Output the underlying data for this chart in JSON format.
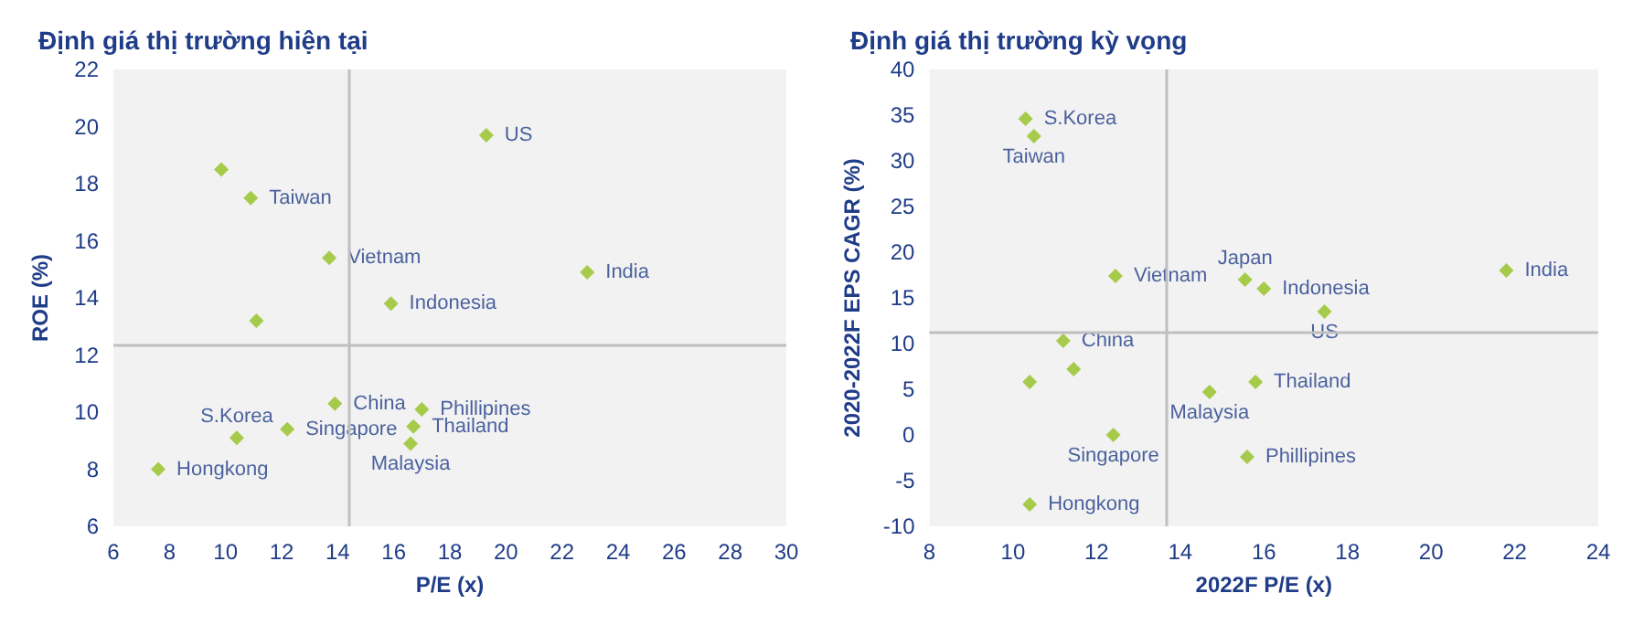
{
  "chart_data": [
    {
      "type": "scatter",
      "title": "Định giá thị trường hiện tại",
      "xlabel": "P/E (x)",
      "ylabel": "ROE (%)",
      "xlim": [
        6,
        30
      ],
      "xticks": [
        6,
        8,
        10,
        12,
        14,
        16,
        18,
        20,
        22,
        24,
        26,
        28,
        30
      ],
      "ylim": [
        6,
        22
      ],
      "yticks": [
        6,
        8,
        10,
        12,
        14,
        16,
        18,
        20,
        22
      ],
      "grid": false,
      "marker": "diamond",
      "series": [
        {
          "color": "#92c01f",
          "x": [
            19.3,
            9.85,
            10.9,
            13.7,
            22.9,
            15.9,
            11.1,
            13.9,
            17.0,
            16.7,
            12.2,
            10.4,
            16.6,
            7.6
          ],
          "values": [
            19.7,
            18.5,
            17.5,
            15.4,
            14.9,
            13.8,
            13.2,
            10.3,
            10.1,
            9.5,
            9.4,
            9.1,
            8.9,
            8.0
          ]
        }
      ],
      "ref_lines": [
        {
          "axis": "x",
          "value": 14.4,
          "color": "#bfbfbf"
        },
        {
          "axis": "y",
          "value": 12.35,
          "color": "#bfbfbf"
        }
      ],
      "annotations": [
        {
          "text": "US",
          "x": 19.3,
          "y": 19.7
        },
        {
          "text": "Taiwan",
          "x": 10.9,
          "y": 17.5
        },
        {
          "text": "Vietnam",
          "x": 13.7,
          "y": 15.4
        },
        {
          "text": "India",
          "x": 22.9,
          "y": 14.9
        },
        {
          "text": "Indonesia",
          "x": 15.9,
          "y": 13.8
        },
        {
          "text": "China",
          "x": 13.9,
          "y": 10.3
        },
        {
          "text": "Phillipines",
          "x": 17.0,
          "y": 10.1
        },
        {
          "text": "Thailand",
          "x": 16.7,
          "y": 9.5
        },
        {
          "text": "Singapore",
          "x": 12.2,
          "y": 9.4
        },
        {
          "text": "S.Korea",
          "x": 10.4,
          "y": 9.1
        },
        {
          "text": "Malaysia",
          "x": 16.6,
          "y": 8.9
        },
        {
          "text": "Hongkong",
          "x": 7.6,
          "y": 8.0
        }
      ]
    },
    {
      "type": "scatter",
      "title": "Định giá thị trường kỳ vọng",
      "xlabel": "2022F P/E (x)",
      "ylabel": "2020-2022F EPS CAGR (%)",
      "xlim": [
        8,
        24
      ],
      "xticks": [
        8,
        10,
        12,
        14,
        16,
        18,
        20,
        22,
        24
      ],
      "ylim": [
        -10,
        40
      ],
      "yticks": [
        -10,
        -5,
        0,
        5,
        10,
        15,
        20,
        25,
        30,
        35,
        40
      ],
      "grid": false,
      "marker": "diamond",
      "series": [
        {
          "color": "#92c01f",
          "x": [
            10.3,
            10.5,
            12.45,
            15.55,
            16.0,
            21.8,
            17.45,
            11.2,
            11.45,
            10.4,
            14.7,
            15.8,
            12.4,
            15.6,
            10.4
          ],
          "values": [
            34.6,
            32.7,
            17.4,
            17.0,
            16.0,
            18.0,
            13.5,
            10.3,
            7.2,
            5.8,
            4.7,
            5.8,
            0,
            -2.4,
            -7.6
          ]
        }
      ],
      "ref_lines": [
        {
          "axis": "x",
          "value": 13.65,
          "color": "#bfbfbf"
        },
        {
          "axis": "y",
          "value": 11.3,
          "color": "#bfbfbf"
        }
      ],
      "annotations": [
        {
          "text": "S.Korea",
          "x": 10.3,
          "y": 34.6
        },
        {
          "text": "Taiwan",
          "x": 10.5,
          "y": 32.7
        },
        {
          "text": "Vietnam",
          "x": 12.45,
          "y": 17.4
        },
        {
          "text": "Japan",
          "x": 15.55,
          "y": 17.0
        },
        {
          "text": "Indonesia",
          "x": 16.0,
          "y": 16.0
        },
        {
          "text": "India",
          "x": 21.8,
          "y": 18.0
        },
        {
          "text": "US",
          "x": 17.45,
          "y": 13.5
        },
        {
          "text": "China",
          "x": 11.2,
          "y": 10.3
        },
        {
          "text": "Malaysia",
          "x": 14.7,
          "y": 4.7
        },
        {
          "text": "Thailand",
          "x": 15.8,
          "y": 5.8
        },
        {
          "text": "Singapore",
          "x": 12.4,
          "y": 0
        },
        {
          "text": "Phillipines",
          "x": 15.6,
          "y": -2.4
        },
        {
          "text": "Hongkong",
          "x": 10.4,
          "y": -7.6
        }
      ]
    }
  ]
}
